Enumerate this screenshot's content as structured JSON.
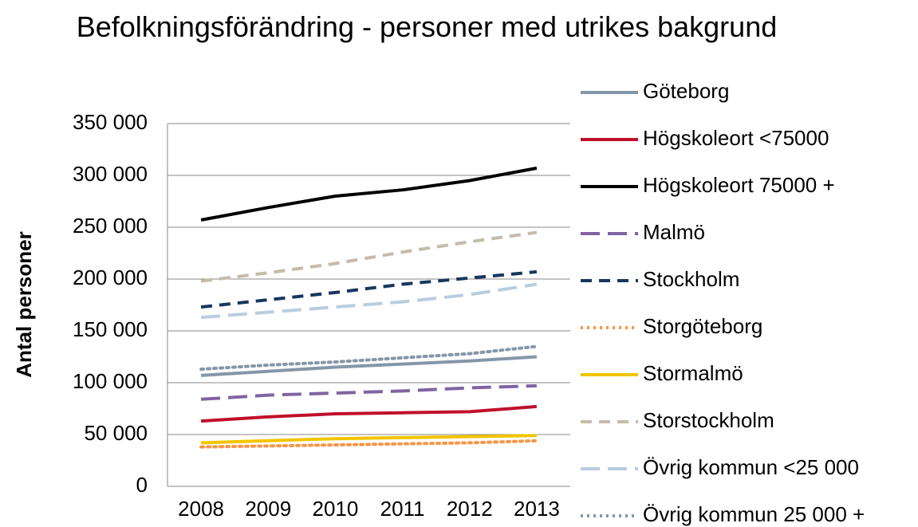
{
  "chart_data": {
    "type": "line",
    "title": "Befolkningsförändring - personer med utrikes bakgrund",
    "y_label": "Antal personer",
    "categories": [
      "2008",
      "2009",
      "2010",
      "2011",
      "2012",
      "2013"
    ],
    "ylim": [
      0,
      350000
    ],
    "yticks": [
      0,
      {
        "value": 50000,
        "label": "50 000"
      },
      {
        "value": 100000,
        "label": "100 000"
      },
      {
        "value": 150000,
        "label": "150 000"
      },
      {
        "value": 200000,
        "label": "200 000"
      },
      {
        "value": 250000,
        "label": "250 000"
      },
      {
        "value": 300000,
        "label": "300 000"
      },
      {
        "value": 350000,
        "label": "350 000"
      }
    ],
    "grid": true,
    "legend": "right",
    "series": [
      {
        "name": "Göteborg",
        "color": "#8497a8",
        "dash": "solid",
        "values": [
          107000,
          111000,
          115000,
          118000,
          121000,
          125000
        ]
      },
      {
        "name": "Högskoleort <75000",
        "color": "#c0102b",
        "dash": "solid",
        "values": [
          63000,
          67000,
          70000,
          71000,
          72000,
          77000
        ]
      },
      {
        "name": "Högskoleort 75000 +",
        "color": "#000000",
        "dash": "solid",
        "values": [
          257000,
          269000,
          280000,
          286000,
          295000,
          307000
        ]
      },
      {
        "name": "Malmö",
        "color": "#8064a2",
        "dash": "longdash",
        "values": [
          84000,
          88000,
          90000,
          92000,
          95000,
          97000
        ]
      },
      {
        "name": "Stockholm",
        "color": "#17375e",
        "dash": "dash",
        "values": [
          173000,
          180000,
          187000,
          195000,
          201000,
          207000
        ]
      },
      {
        "name": "Storgöteborg",
        "color": "#f79646",
        "dash": "dot",
        "values": [
          38000,
          39000,
          40000,
          41000,
          42000,
          44000
        ]
      },
      {
        "name": "Stormalmö",
        "color": "#f2c500",
        "dash": "solid",
        "values": [
          42000,
          44000,
          46000,
          47000,
          48000,
          49000
        ]
      },
      {
        "name": "Storstockholm",
        "color": "#c4bcaa",
        "dash": "dash",
        "values": [
          198000,
          206000,
          215000,
          226000,
          236000,
          245000
        ]
      },
      {
        "name": "Övrig kommun <25 000",
        "color": "#b9cde0",
        "dash": "longdash",
        "values": [
          163000,
          168000,
          173000,
          178000,
          185000,
          195000
        ]
      },
      {
        "name": "Övrig kommun 25 000 +",
        "color": "#8497a8",
        "dash": "dot",
        "values": [
          113000,
          117000,
          120000,
          124000,
          128000,
          135000
        ]
      }
    ]
  }
}
